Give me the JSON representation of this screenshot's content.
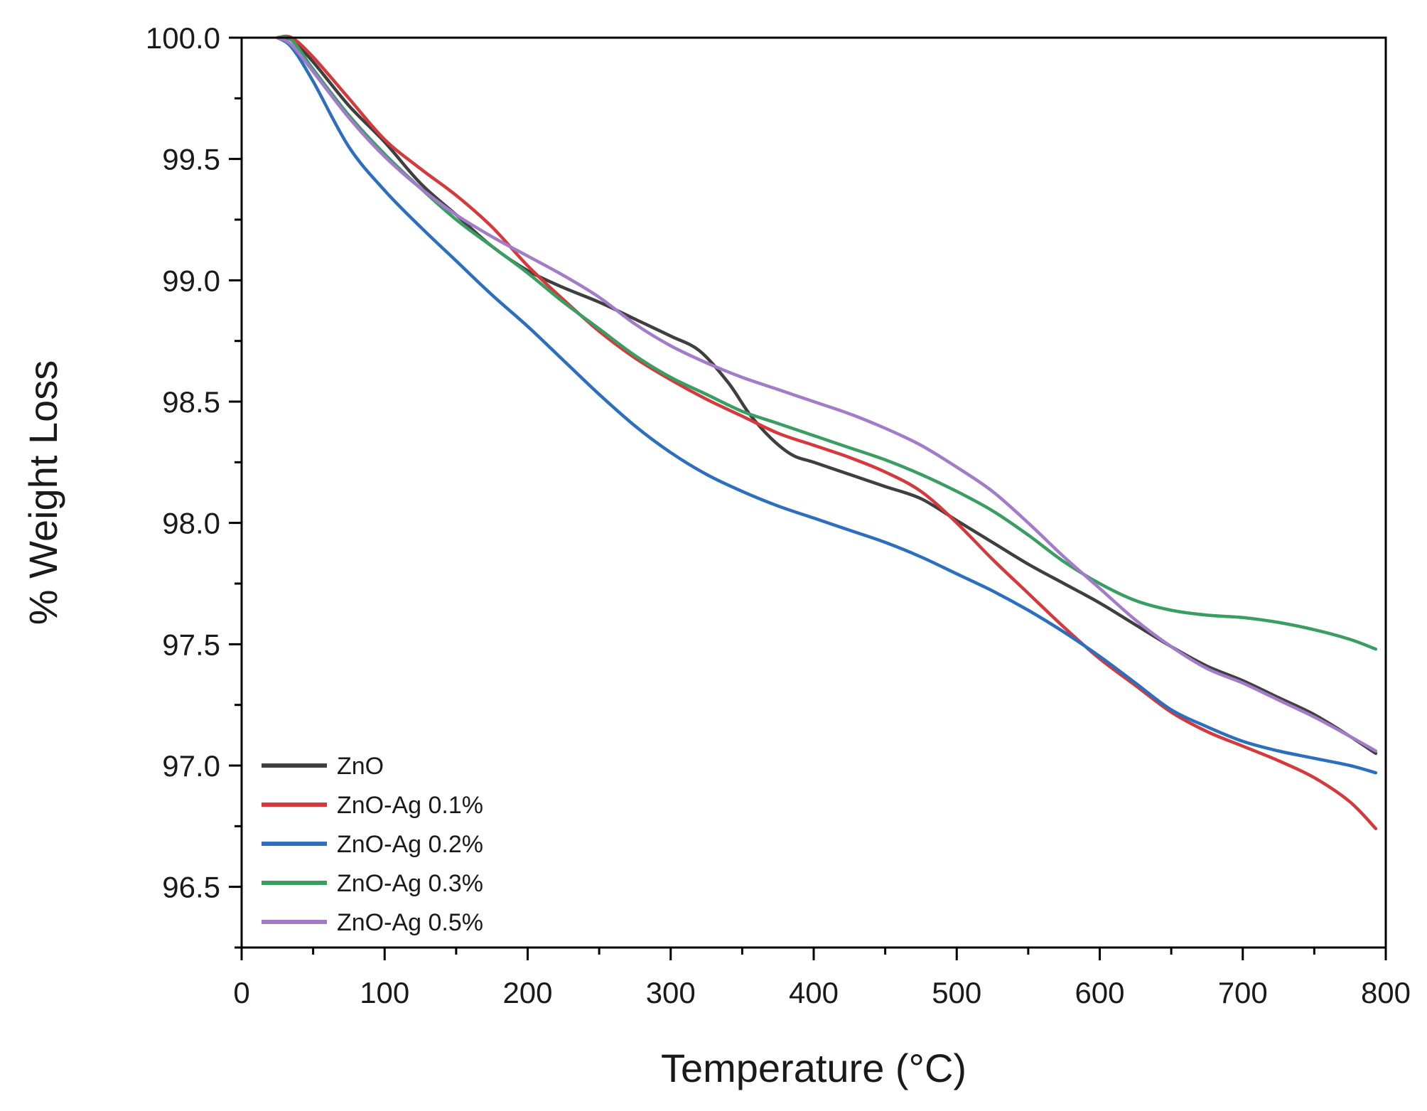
{
  "chart_data": {
    "type": "line",
    "title": "",
    "xlabel": "Temperature (°C)",
    "ylabel": "% Weight Loss",
    "xlim": [
      0,
      800
    ],
    "ylim": [
      96.25,
      100.0
    ],
    "xticks": [
      0,
      100,
      200,
      300,
      400,
      500,
      600,
      700,
      800
    ],
    "yticks": [
      96.5,
      97.0,
      97.5,
      98.0,
      98.5,
      99.0,
      99.5,
      100.0
    ],
    "xtick_labels": [
      "0",
      "100",
      "200",
      "300",
      "400",
      "500",
      "600",
      "700",
      "800"
    ],
    "ytick_labels": [
      "96.5",
      "97.0",
      "97.5",
      "98.0",
      "98.5",
      "99.0",
      "99.5",
      "100.0"
    ],
    "grid": false,
    "legend_position": "bottom-left",
    "series": [
      {
        "name": "ZnO",
        "color": "#3f3f3f",
        "points": [
          [
            25,
            100.0
          ],
          [
            35,
            99.99
          ],
          [
            50,
            99.9
          ],
          [
            75,
            99.72
          ],
          [
            100,
            99.57
          ],
          [
            125,
            99.4
          ],
          [
            150,
            99.27
          ],
          [
            175,
            99.14
          ],
          [
            200,
            99.04
          ],
          [
            225,
            98.97
          ],
          [
            250,
            98.91
          ],
          [
            275,
            98.84
          ],
          [
            300,
            98.77
          ],
          [
            320,
            98.71
          ],
          [
            340,
            98.58
          ],
          [
            355,
            98.45
          ],
          [
            370,
            98.35
          ],
          [
            385,
            98.28
          ],
          [
            400,
            98.25
          ],
          [
            425,
            98.2
          ],
          [
            450,
            98.15
          ],
          [
            475,
            98.1
          ],
          [
            500,
            98.01
          ],
          [
            525,
            97.92
          ],
          [
            550,
            97.83
          ],
          [
            575,
            97.75
          ],
          [
            600,
            97.67
          ],
          [
            625,
            97.58
          ],
          [
            650,
            97.49
          ],
          [
            675,
            97.41
          ],
          [
            700,
            97.35
          ],
          [
            725,
            97.28
          ],
          [
            750,
            97.21
          ],
          [
            775,
            97.12
          ],
          [
            793,
            97.05
          ]
        ]
      },
      {
        "name": "ZnO-Ag 0.1%",
        "color": "#d6393b",
        "points": [
          [
            25,
            100.0
          ],
          [
            35,
            100.0
          ],
          [
            50,
            99.92
          ],
          [
            75,
            99.75
          ],
          [
            100,
            99.58
          ],
          [
            125,
            99.46
          ],
          [
            150,
            99.35
          ],
          [
            175,
            99.22
          ],
          [
            200,
            99.06
          ],
          [
            225,
            98.92
          ],
          [
            250,
            98.79
          ],
          [
            275,
            98.68
          ],
          [
            300,
            98.59
          ],
          [
            325,
            98.51
          ],
          [
            350,
            98.44
          ],
          [
            375,
            98.37
          ],
          [
            400,
            98.32
          ],
          [
            425,
            98.27
          ],
          [
            450,
            98.21
          ],
          [
            475,
            98.13
          ],
          [
            500,
            98.0
          ],
          [
            525,
            97.85
          ],
          [
            550,
            97.71
          ],
          [
            575,
            97.57
          ],
          [
            600,
            97.44
          ],
          [
            625,
            97.33
          ],
          [
            650,
            97.22
          ],
          [
            675,
            97.14
          ],
          [
            700,
            97.08
          ],
          [
            725,
            97.02
          ],
          [
            750,
            96.95
          ],
          [
            775,
            96.85
          ],
          [
            793,
            96.74
          ]
        ]
      },
      {
        "name": "ZnO-Ag 0.2%",
        "color": "#2d6fbf",
        "points": [
          [
            25,
            100.0
          ],
          [
            35,
            99.96
          ],
          [
            50,
            99.82
          ],
          [
            75,
            99.55
          ],
          [
            100,
            99.37
          ],
          [
            125,
            99.22
          ],
          [
            150,
            99.08
          ],
          [
            175,
            98.94
          ],
          [
            200,
            98.81
          ],
          [
            225,
            98.67
          ],
          [
            250,
            98.53
          ],
          [
            275,
            98.4
          ],
          [
            300,
            98.29
          ],
          [
            325,
            98.2
          ],
          [
            350,
            98.13
          ],
          [
            375,
            98.07
          ],
          [
            400,
            98.02
          ],
          [
            425,
            97.97
          ],
          [
            450,
            97.92
          ],
          [
            475,
            97.86
          ],
          [
            500,
            97.79
          ],
          [
            525,
            97.72
          ],
          [
            550,
            97.64
          ],
          [
            575,
            97.55
          ],
          [
            600,
            97.45
          ],
          [
            625,
            97.34
          ],
          [
            650,
            97.23
          ],
          [
            675,
            97.16
          ],
          [
            700,
            97.1
          ],
          [
            725,
            97.06
          ],
          [
            750,
            97.03
          ],
          [
            775,
            97.0
          ],
          [
            793,
            96.97
          ]
        ]
      },
      {
        "name": "ZnO-Ag 0.3%",
        "color": "#3a9e63",
        "points": [
          [
            25,
            100.0
          ],
          [
            35,
            99.99
          ],
          [
            50,
            99.87
          ],
          [
            75,
            99.68
          ],
          [
            100,
            99.52
          ],
          [
            125,
            99.38
          ],
          [
            150,
            99.25
          ],
          [
            175,
            99.14
          ],
          [
            200,
            99.03
          ],
          [
            225,
            98.91
          ],
          [
            250,
            98.8
          ],
          [
            275,
            98.69
          ],
          [
            300,
            98.6
          ],
          [
            325,
            98.53
          ],
          [
            350,
            98.46
          ],
          [
            375,
            98.41
          ],
          [
            400,
            98.36
          ],
          [
            425,
            98.31
          ],
          [
            450,
            98.26
          ],
          [
            475,
            98.2
          ],
          [
            500,
            98.13
          ],
          [
            525,
            98.05
          ],
          [
            550,
            97.95
          ],
          [
            575,
            97.84
          ],
          [
            600,
            97.75
          ],
          [
            625,
            97.68
          ],
          [
            650,
            97.64
          ],
          [
            675,
            97.62
          ],
          [
            700,
            97.61
          ],
          [
            725,
            97.59
          ],
          [
            750,
            97.56
          ],
          [
            775,
            97.52
          ],
          [
            793,
            97.48
          ]
        ]
      },
      {
        "name": "ZnO-Ag 0.5%",
        "color": "#a37cc9",
        "points": [
          [
            25,
            100.0
          ],
          [
            35,
            99.97
          ],
          [
            50,
            99.86
          ],
          [
            75,
            99.67
          ],
          [
            100,
            99.51
          ],
          [
            125,
            99.38
          ],
          [
            150,
            99.27
          ],
          [
            175,
            99.18
          ],
          [
            200,
            99.1
          ],
          [
            225,
            99.02
          ],
          [
            250,
            98.93
          ],
          [
            275,
            98.82
          ],
          [
            300,
            98.73
          ],
          [
            325,
            98.66
          ],
          [
            350,
            98.6
          ],
          [
            375,
            98.55
          ],
          [
            400,
            98.5
          ],
          [
            425,
            98.45
          ],
          [
            450,
            98.39
          ],
          [
            475,
            98.32
          ],
          [
            500,
            98.23
          ],
          [
            525,
            98.13
          ],
          [
            550,
            98.0
          ],
          [
            575,
            97.86
          ],
          [
            600,
            97.73
          ],
          [
            625,
            97.6
          ],
          [
            650,
            97.49
          ],
          [
            675,
            97.4
          ],
          [
            700,
            97.34
          ],
          [
            725,
            97.27
          ],
          [
            750,
            97.2
          ],
          [
            775,
            97.12
          ],
          [
            793,
            97.06
          ]
        ]
      }
    ]
  }
}
